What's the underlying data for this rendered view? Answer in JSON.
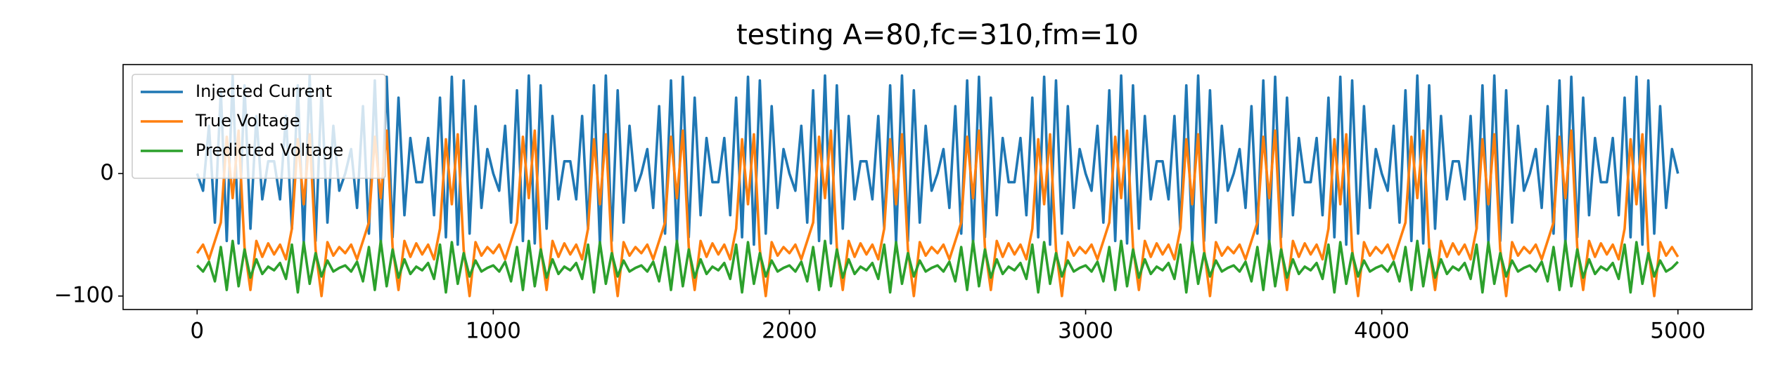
{
  "chart_data": {
    "type": "line",
    "title": "testing A=80,fc=310,fm=10",
    "x": [
      0,
      20,
      40,
      60,
      80,
      100,
      120,
      140,
      160,
      180,
      200,
      220,
      240,
      260,
      280,
      300,
      320,
      340,
      360,
      380,
      400,
      420,
      440,
      460,
      480,
      500,
      520,
      540,
      560,
      580,
      600,
      620,
      640,
      660,
      680,
      700,
      720,
      740,
      760,
      780,
      800,
      820,
      840,
      860,
      880,
      900,
      920,
      940,
      960,
      980,
      1000,
      1020,
      1040,
      1060,
      1080,
      1100,
      1120,
      1140,
      1160,
      1180,
      1200,
      1220,
      1240,
      1260,
      1280,
      1300,
      1320,
      1340,
      1360,
      1380,
      1400,
      1420,
      1440,
      1460,
      1480,
      1500,
      1520,
      1540,
      1560,
      1580,
      1600,
      1620,
      1640,
      1660,
      1680,
      1700,
      1720,
      1740,
      1760,
      1780,
      1800,
      1820,
      1840,
      1860,
      1880,
      1900,
      1920,
      1940,
      1960,
      1980,
      2000,
      2020,
      2040,
      2060,
      2080,
      2100,
      2120,
      2140,
      2160,
      2180,
      2200,
      2220,
      2240,
      2260,
      2280,
      2300,
      2320,
      2340,
      2360,
      2380,
      2400,
      2420,
      2440,
      2460,
      2480,
      2500,
      2520,
      2540,
      2560,
      2580,
      2600,
      2620,
      2640,
      2660,
      2680,
      2700,
      2720,
      2740,
      2760,
      2780,
      2800,
      2820,
      2840,
      2860,
      2880,
      2900,
      2920,
      2940,
      2960,
      2980,
      3000,
      3020,
      3040,
      3060,
      3080,
      3100,
      3120,
      3140,
      3160,
      3180,
      3200,
      3220,
      3240,
      3260,
      3280,
      3300,
      3320,
      3340,
      3360,
      3380,
      3400,
      3420,
      3440,
      3460,
      3480,
      3500,
      3520,
      3540,
      3560,
      3580,
      3600,
      3620,
      3640,
      3660,
      3680,
      3700,
      3720,
      3740,
      3760,
      3780,
      3800,
      3820,
      3840,
      3860,
      3880,
      3900,
      3920,
      3940,
      3960,
      3980,
      4000,
      4020,
      4040,
      4060,
      4080,
      4100,
      4120,
      4140,
      4160,
      4180,
      4200,
      4220,
      4240,
      4260,
      4280,
      4300,
      4320,
      4340,
      4360,
      4380,
      4400,
      4420,
      4440,
      4460,
      4480,
      4500,
      4520,
      4540,
      4560,
      4580,
      4600,
      4620,
      4640,
      4660,
      4680,
      4700,
      4720,
      4740,
      4760,
      4780,
      4800,
      4820,
      4840,
      4860,
      4880,
      4900,
      4920,
      4940,
      4960,
      4980,
      5000
    ],
    "series": [
      {
        "name": "Injected Current",
        "color": "#1f77b4",
        "values": [
          0,
          -14,
          39,
          -40,
          68,
          -55,
          80,
          -57,
          72,
          -45,
          47,
          -21,
          10,
          10,
          -21,
          47,
          -45,
          72,
          -57,
          80,
          -55,
          68,
          -40,
          39,
          -14,
          0,
          20,
          -28,
          55,
          -49,
          76,
          -58,
          79,
          -52,
          62,
          -34,
          29,
          -7,
          -7,
          29,
          -34,
          62,
          -52,
          79,
          -58,
          76,
          -49,
          55,
          -28,
          20,
          0,
          -14,
          39,
          -40,
          68,
          -55,
          80,
          -57,
          72,
          -45,
          47,
          -21,
          10,
          10,
          -21,
          47,
          -45,
          72,
          -57,
          80,
          -55,
          68,
          -40,
          39,
          -14,
          0,
          20,
          -28,
          55,
          -49,
          76,
          -58,
          79,
          -52,
          62,
          -34,
          29,
          -7,
          -7,
          29,
          -34,
          62,
          -52,
          79,
          -58,
          76,
          -49,
          55,
          -28,
          20,
          0,
          -14,
          39,
          -40,
          68,
          -55,
          80,
          -57,
          72,
          -45,
          47,
          -21,
          10,
          10,
          -21,
          47,
          -45,
          72,
          -57,
          80,
          -55,
          68,
          -40,
          39,
          -14,
          0,
          20,
          -28,
          55,
          -49,
          76,
          -58,
          79,
          -52,
          62,
          -34,
          29,
          -7,
          -7,
          29,
          -34,
          62,
          -52,
          79,
          -58,
          76,
          -49,
          55,
          -28,
          20,
          0,
          -14,
          39,
          -40,
          68,
          -55,
          80,
          -57,
          72,
          -45,
          47,
          -21,
          10,
          10,
          -21,
          47,
          -45,
          72,
          -57,
          80,
          -55,
          68,
          -40,
          39,
          -14,
          0,
          20,
          -28,
          55,
          -49,
          76,
          -58,
          79,
          -52,
          62,
          -34,
          29,
          -7,
          -7,
          29,
          -34,
          62,
          -52,
          79,
          -58,
          76,
          -49,
          55,
          -28,
          20,
          0,
          -14,
          39,
          -40,
          68,
          -55,
          80,
          -57,
          72,
          -45,
          47,
          -21,
          10,
          10,
          -21,
          47,
          -45,
          72,
          -57,
          80,
          -55,
          68,
          -40,
          39,
          -14,
          0,
          20,
          -28,
          55,
          -49,
          76,
          -58,
          79,
          -52,
          62,
          -34,
          29,
          -7,
          -7,
          29,
          -34,
          62,
          -52,
          79,
          -58,
          76,
          -49,
          55,
          -28,
          20,
          0
        ]
      },
      {
        "name": "True Voltage",
        "color": "#ff7f0e",
        "values": [
          -65,
          -58,
          -70,
          -55,
          -40,
          30,
          -20,
          35,
          -60,
          -95,
          -55,
          -68,
          -57,
          -66,
          -58,
          -70,
          -45,
          28,
          -25,
          32,
          -62,
          -100,
          -56,
          -67,
          -60,
          -65,
          -58,
          -70,
          -55,
          -40,
          30,
          -20,
          35,
          -60,
          -95,
          -55,
          -68,
          -57,
          -66,
          -58,
          -70,
          -45,
          28,
          -25,
          32,
          -62,
          -100,
          -56,
          -67,
          -60,
          -65,
          -58,
          -70,
          -55,
          -40,
          30,
          -20,
          35,
          -60,
          -95,
          -55,
          -68,
          -57,
          -66,
          -58,
          -70,
          -45,
          28,
          -25,
          32,
          -62,
          -100,
          -56,
          -67,
          -60,
          -65,
          -58,
          -70,
          -55,
          -40,
          30,
          -20,
          35,
          -60,
          -95,
          -55,
          -68,
          -57,
          -66,
          -58,
          -70,
          -45,
          28,
          -25,
          32,
          -62,
          -100,
          -56,
          -67,
          -60,
          -65,
          -58,
          -70,
          -55,
          -40,
          30,
          -20,
          35,
          -60,
          -95,
          -55,
          -68,
          -57,
          -66,
          -58,
          -70,
          -45,
          28,
          -25,
          32,
          -62,
          -100,
          -56,
          -67,
          -60,
          -65,
          -58,
          -70,
          -55,
          -40,
          30,
          -20,
          35,
          -60,
          -95,
          -55,
          -68,
          -57,
          -66,
          -58,
          -70,
          -45,
          28,
          -25,
          32,
          -62,
          -100,
          -56,
          -67,
          -60,
          -65,
          -58,
          -70,
          -55,
          -40,
          30,
          -20,
          35,
          -60,
          -95,
          -55,
          -68,
          -57,
          -66,
          -58,
          -70,
          -45,
          28,
          -25,
          32,
          -62,
          -100,
          -56,
          -67,
          -60,
          -65,
          -58,
          -70,
          -55,
          -40,
          30,
          -20,
          35,
          -60,
          -95,
          -55,
          -68,
          -57,
          -66,
          -58,
          -70,
          -45,
          28,
          -25,
          32,
          -62,
          -100,
          -56,
          -67,
          -60,
          -65,
          -58,
          -70,
          -55,
          -40,
          30,
          -20,
          35,
          -60,
          -95,
          -55,
          -68,
          -57,
          -66,
          -58,
          -70,
          -45,
          28,
          -25,
          32,
          -62,
          -100,
          -56,
          -67,
          -60,
          -65,
          -58,
          -70,
          -55,
          -40,
          30,
          -20,
          35,
          -60,
          -95,
          -55,
          -68,
          -57,
          -66,
          -58,
          -70,
          -45,
          28,
          -25,
          32,
          -62,
          -100,
          -56,
          -67,
          -60,
          -68
        ]
      },
      {
        "name": "Predicted Voltage",
        "color": "#2ca02c",
        "values": [
          -75,
          -80,
          -72,
          -88,
          -60,
          -95,
          -55,
          -92,
          -62,
          -85,
          -70,
          -82,
          -76,
          -79,
          -73,
          -86,
          -58,
          -97,
          -56,
          -90,
          -65,
          -84,
          -71,
          -80,
          -77,
          -75,
          -80,
          -72,
          -88,
          -60,
          -95,
          -55,
          -92,
          -62,
          -85,
          -70,
          -82,
          -76,
          -79,
          -73,
          -86,
          -58,
          -97,
          -56,
          -90,
          -65,
          -84,
          -71,
          -80,
          -77,
          -75,
          -80,
          -72,
          -88,
          -60,
          -95,
          -55,
          -92,
          -62,
          -85,
          -70,
          -82,
          -76,
          -79,
          -73,
          -86,
          -58,
          -97,
          -56,
          -90,
          -65,
          -84,
          -71,
          -80,
          -77,
          -75,
          -80,
          -72,
          -88,
          -60,
          -95,
          -55,
          -92,
          -62,
          -85,
          -70,
          -82,
          -76,
          -79,
          -73,
          -86,
          -58,
          -97,
          -56,
          -90,
          -65,
          -84,
          -71,
          -80,
          -77,
          -75,
          -80,
          -72,
          -88,
          -60,
          -95,
          -55,
          -92,
          -62,
          -85,
          -70,
          -82,
          -76,
          -79,
          -73,
          -86,
          -58,
          -97,
          -56,
          -90,
          -65,
          -84,
          -71,
          -80,
          -77,
          -75,
          -80,
          -72,
          -88,
          -60,
          -95,
          -55,
          -92,
          -62,
          -85,
          -70,
          -82,
          -76,
          -79,
          -73,
          -86,
          -58,
          -97,
          -56,
          -90,
          -65,
          -84,
          -71,
          -80,
          -77,
          -75,
          -80,
          -72,
          -88,
          -60,
          -95,
          -55,
          -92,
          -62,
          -85,
          -70,
          -82,
          -76,
          -79,
          -73,
          -86,
          -58,
          -97,
          -56,
          -90,
          -65,
          -84,
          -71,
          -80,
          -77,
          -75,
          -80,
          -72,
          -88,
          -60,
          -95,
          -55,
          -92,
          -62,
          -85,
          -70,
          -82,
          -76,
          -79,
          -73,
          -86,
          -58,
          -97,
          -56,
          -90,
          -65,
          -84,
          -71,
          -80,
          -77,
          -75,
          -80,
          -72,
          -88,
          -60,
          -95,
          -55,
          -92,
          -62,
          -85,
          -70,
          -82,
          -76,
          -79,
          -73,
          -86,
          -58,
          -97,
          -56,
          -90,
          -65,
          -84,
          -71,
          -80,
          -77,
          -75,
          -80,
          -72,
          -88,
          -60,
          -95,
          -55,
          -92,
          -62,
          -85,
          -70,
          -82,
          -76,
          -79,
          -73,
          -86,
          -58,
          -97,
          -56,
          -90,
          -65,
          -84,
          -71,
          -80,
          -77,
          -72
        ]
      }
    ],
    "xlim": [
      -250,
      5250
    ],
    "xticks": [
      0,
      1000,
      2000,
      3000,
      4000,
      5000
    ],
    "ylim": [
      -111,
      89
    ],
    "yticks": [
      {
        "value": -100,
        "label": "−100"
      },
      0
    ],
    "legend": "upper left"
  }
}
